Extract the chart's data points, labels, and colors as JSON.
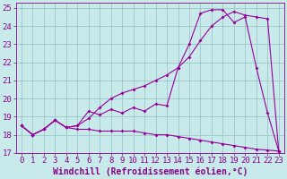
{
  "xlabel": "Windchill (Refroidissement éolien,°C)",
  "ylabel": "",
  "xlim": [
    -0.5,
    23.5
  ],
  "ylim": [
    17,
    25.3
  ],
  "xticks": [
    0,
    1,
    2,
    3,
    4,
    5,
    6,
    7,
    8,
    9,
    10,
    11,
    12,
    13,
    14,
    15,
    16,
    17,
    18,
    19,
    20,
    21,
    22,
    23
  ],
  "yticks": [
    17,
    18,
    19,
    20,
    21,
    22,
    23,
    24,
    25
  ],
  "bg_color": "#c8eaea",
  "grid_color": "#9cc8c8",
  "line_color": "#990099",
  "curve1_x": [
    0,
    1,
    2,
    3,
    4,
    5,
    6,
    7,
    8,
    9,
    10,
    11,
    12,
    13,
    14,
    15,
    16,
    17,
    18,
    19,
    20,
    21,
    22,
    23
  ],
  "curve1_y": [
    18.5,
    18.0,
    18.3,
    18.8,
    18.4,
    18.3,
    18.3,
    18.2,
    18.2,
    18.2,
    18.2,
    18.1,
    18.0,
    18.0,
    17.9,
    17.8,
    17.7,
    17.6,
    17.5,
    17.4,
    17.3,
    17.2,
    17.15,
    17.1
  ],
  "curve2_x": [
    0,
    1,
    2,
    3,
    4,
    5,
    6,
    7,
    8,
    9,
    10,
    11,
    12,
    13,
    14,
    15,
    16,
    17,
    18,
    19,
    20,
    21,
    22,
    23
  ],
  "curve2_y": [
    18.5,
    18.0,
    18.3,
    18.8,
    18.4,
    18.5,
    19.3,
    19.1,
    19.4,
    19.2,
    19.5,
    19.3,
    19.7,
    19.6,
    21.7,
    23.0,
    24.7,
    24.9,
    24.9,
    24.2,
    24.5,
    21.7,
    19.2,
    17.1
  ],
  "curve3_x": [
    0,
    1,
    2,
    3,
    4,
    5,
    6,
    7,
    8,
    9,
    10,
    11,
    12,
    13,
    14,
    15,
    16,
    17,
    18,
    19,
    20,
    21,
    22,
    23
  ],
  "curve3_y": [
    18.5,
    18.0,
    18.3,
    18.8,
    18.4,
    18.5,
    18.9,
    19.5,
    20.0,
    20.3,
    20.5,
    20.7,
    21.0,
    21.3,
    21.7,
    22.3,
    23.2,
    24.0,
    24.5,
    24.8,
    24.6,
    24.5,
    24.4,
    17.1
  ],
  "font_color": "#880088",
  "font_size": 6.5,
  "xlabel_fontsize": 7.0
}
